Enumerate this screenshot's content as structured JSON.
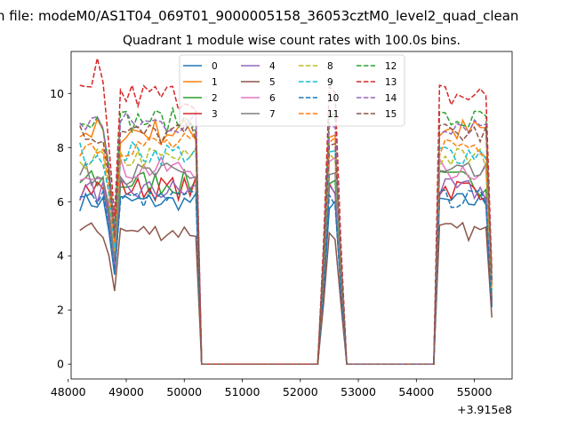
{
  "chart_data": {
    "type": "line",
    "suptitle": "n file: modeM0/AS1T04_069T01_9000005158_36053cztM0_level2_quad_clean",
    "title": "Quadrant 1 module wise count rates with 100.0s bins.",
    "xlabel": "",
    "ylabel": "",
    "x_offset_label": "+3.915e8",
    "xlim": [
      48050,
      55650
    ],
    "ylim": [
      -0.55,
      11.55
    ],
    "xticks": [
      "48000",
      "49000",
      "50000",
      "51000",
      "52000",
      "53000",
      "54000",
      "55000"
    ],
    "xtick_values": [
      48000,
      49000,
      50000,
      51000,
      52000,
      53000,
      54000,
      55000
    ],
    "yticks": [
      "0",
      "2",
      "4",
      "6",
      "8",
      "10"
    ],
    "ytick_values": [
      0,
      2,
      4,
      6,
      8,
      10
    ],
    "legend_position": "upper center",
    "series": [
      {
        "name": "0",
        "color": "#1f77b4",
        "dash": "solid",
        "base": 6.0,
        "amp": 0.35,
        "x": [],
        "y": []
      },
      {
        "name": "1",
        "color": "#ff7f0e",
        "dash": "solid",
        "base": 8.6,
        "amp": 0.5
      },
      {
        "name": "2",
        "color": "#2ca02c",
        "dash": "solid",
        "base": 6.7,
        "amp": 0.5
      },
      {
        "name": "3",
        "color": "#d62728",
        "dash": "solid",
        "base": 6.5,
        "amp": 0.45
      },
      {
        "name": "4",
        "color": "#9467bd",
        "dash": "solid",
        "base": 6.4,
        "amp": 0.45
      },
      {
        "name": "5",
        "color": "#8c564b",
        "dash": "solid",
        "base": 4.9,
        "amp": 0.35
      },
      {
        "name": "6",
        "color": "#e377c2",
        "dash": "solid",
        "base": 7.2,
        "amp": 0.45
      },
      {
        "name": "7",
        "color": "#7f7f7f",
        "dash": "solid",
        "base": 7.0,
        "amp": 0.45
      },
      {
        "name": "8",
        "color": "#bcbd22",
        "dash": "dashed",
        "base": 7.6,
        "amp": 0.45
      },
      {
        "name": "9",
        "color": "#17becf",
        "dash": "dashed",
        "base": 7.8,
        "amp": 0.45
      },
      {
        "name": "10",
        "color": "#1f77b4",
        "dash": "dashed",
        "base": 6.1,
        "amp": 0.35
      },
      {
        "name": "11",
        "color": "#ff7f0e",
        "dash": "dashed",
        "base": 8.1,
        "amp": 0.45
      },
      {
        "name": "12",
        "color": "#2ca02c",
        "dash": "dashed",
        "base": 9.0,
        "amp": 0.45
      },
      {
        "name": "13",
        "color": "#d62728",
        "dash": "dashed",
        "base": 9.9,
        "amp": 0.55
      },
      {
        "name": "14",
        "color": "#9467bd",
        "dash": "dashed",
        "base": 8.9,
        "amp": 0.45
      },
      {
        "name": "15",
        "color": "#8c564b",
        "dash": "dashed",
        "base": 8.5,
        "amp": 0.45
      }
    ],
    "segments": [
      {
        "x_start": 48200,
        "x_end": 50200,
        "active": true
      },
      {
        "x_start": 50300,
        "x_end": 52300,
        "active": false
      },
      {
        "x_start": 52400,
        "x_end": 52700,
        "active": true
      },
      {
        "x_start": 52800,
        "x_end": 54300,
        "active": false
      },
      {
        "x_start": 54400,
        "x_end": 55300,
        "active": true
      }
    ],
    "dip_x": 48800,
    "bin_step": 100
  }
}
